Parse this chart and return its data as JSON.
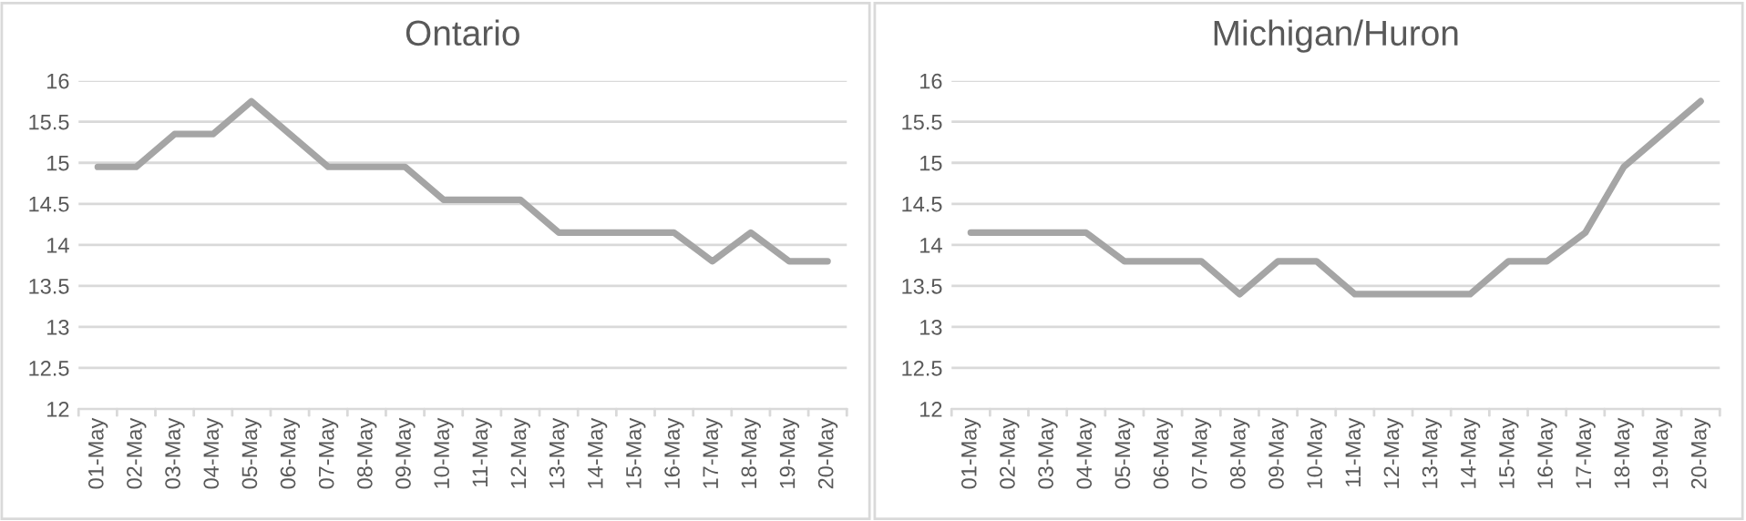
{
  "chart_data": [
    {
      "type": "line",
      "title": "Ontario",
      "categories": [
        "01-May",
        "02-May",
        "03-May",
        "04-May",
        "05-May",
        "06-May",
        "07-May",
        "08-May",
        "09-May",
        "10-May",
        "11-May",
        "12-May",
        "13-May",
        "14-May",
        "15-May",
        "16-May",
        "17-May",
        "18-May",
        "19-May",
        "20-May"
      ],
      "series": [
        {
          "color": "#a5a5a5",
          "values": [
            14.95,
            14.95,
            15.35,
            15.35,
            15.75,
            15.35,
            14.95,
            14.95,
            14.95,
            14.55,
            14.55,
            14.55,
            14.15,
            14.15,
            14.15,
            14.15,
            13.8,
            14.15,
            13.8,
            13.8
          ]
        }
      ],
      "ylim": [
        12,
        16
      ],
      "yticks": [
        12,
        {
          "value": 12.5,
          "label": "12.5"
        },
        13,
        {
          "value": 13.5,
          "label": "13.5"
        },
        14,
        {
          "value": 14.5,
          "label": "14.5"
        },
        15,
        {
          "value": 15.5,
          "label": "15.5"
        },
        16
      ],
      "grid": "y",
      "legend": false,
      "marker": "none",
      "line_style": "solid"
    },
    {
      "type": "line",
      "title": "Michigan/Huron",
      "categories": [
        "01-May",
        "02-May",
        "03-May",
        "04-May",
        "05-May",
        "06-May",
        "07-May",
        "08-May",
        "09-May",
        "10-May",
        "11-May",
        "12-May",
        "13-May",
        "14-May",
        "15-May",
        "16-May",
        "17-May",
        "18-May",
        "19-May",
        "20-May"
      ],
      "series": [
        {
          "color": "#a5a5a5",
          "values": [
            14.15,
            14.15,
            14.15,
            14.15,
            13.8,
            13.8,
            13.8,
            13.4,
            13.8,
            13.8,
            13.4,
            13.4,
            13.4,
            13.4,
            13.8,
            13.8,
            14.15,
            14.95,
            15.35,
            15.75
          ]
        }
      ],
      "ylim": [
        12,
        16
      ],
      "yticks": [
        12,
        {
          "value": 12.5,
          "label": "12.5"
        },
        13,
        {
          "value": 13.5,
          "label": "13.5"
        },
        14,
        {
          "value": 14.5,
          "label": "14.5"
        },
        15,
        {
          "value": 15.5,
          "label": "15.5"
        },
        16
      ],
      "grid": "y",
      "legend": false,
      "marker": "none",
      "line_style": "solid"
    }
  ]
}
